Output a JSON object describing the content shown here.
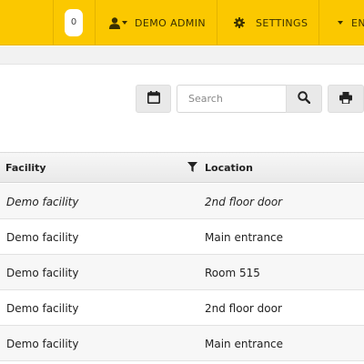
{
  "navbar": {
    "badge_count": "0",
    "user_label": "DEMO ADMIN",
    "settings_label": "SETTINGS",
    "lang_label": "EN",
    "icons": {
      "user": "user-icon",
      "settings": "gear-icon",
      "caret": "caret-down-icon"
    }
  },
  "toolbar": {
    "search_placeholder": "Search",
    "icons": {
      "calendar": "calendar-icon",
      "search": "search-icon",
      "print": "print-icon"
    }
  },
  "table": {
    "columns": {
      "facility": "Facility",
      "location": "Location"
    },
    "rows": [
      {
        "facility": "Demo facility",
        "location": "2nd floor door"
      },
      {
        "facility": "Demo facility",
        "location": "Main entrance"
      },
      {
        "facility": "Demo facility",
        "location": "Room 515"
      },
      {
        "facility": "Demo facility",
        "location": "2nd floor door"
      },
      {
        "facility": "Demo facility",
        "location": "Main entrance"
      }
    ]
  },
  "colors": {
    "navbar": "#fbc800",
    "header_bg": "#eeeeee",
    "text": "#222222"
  }
}
